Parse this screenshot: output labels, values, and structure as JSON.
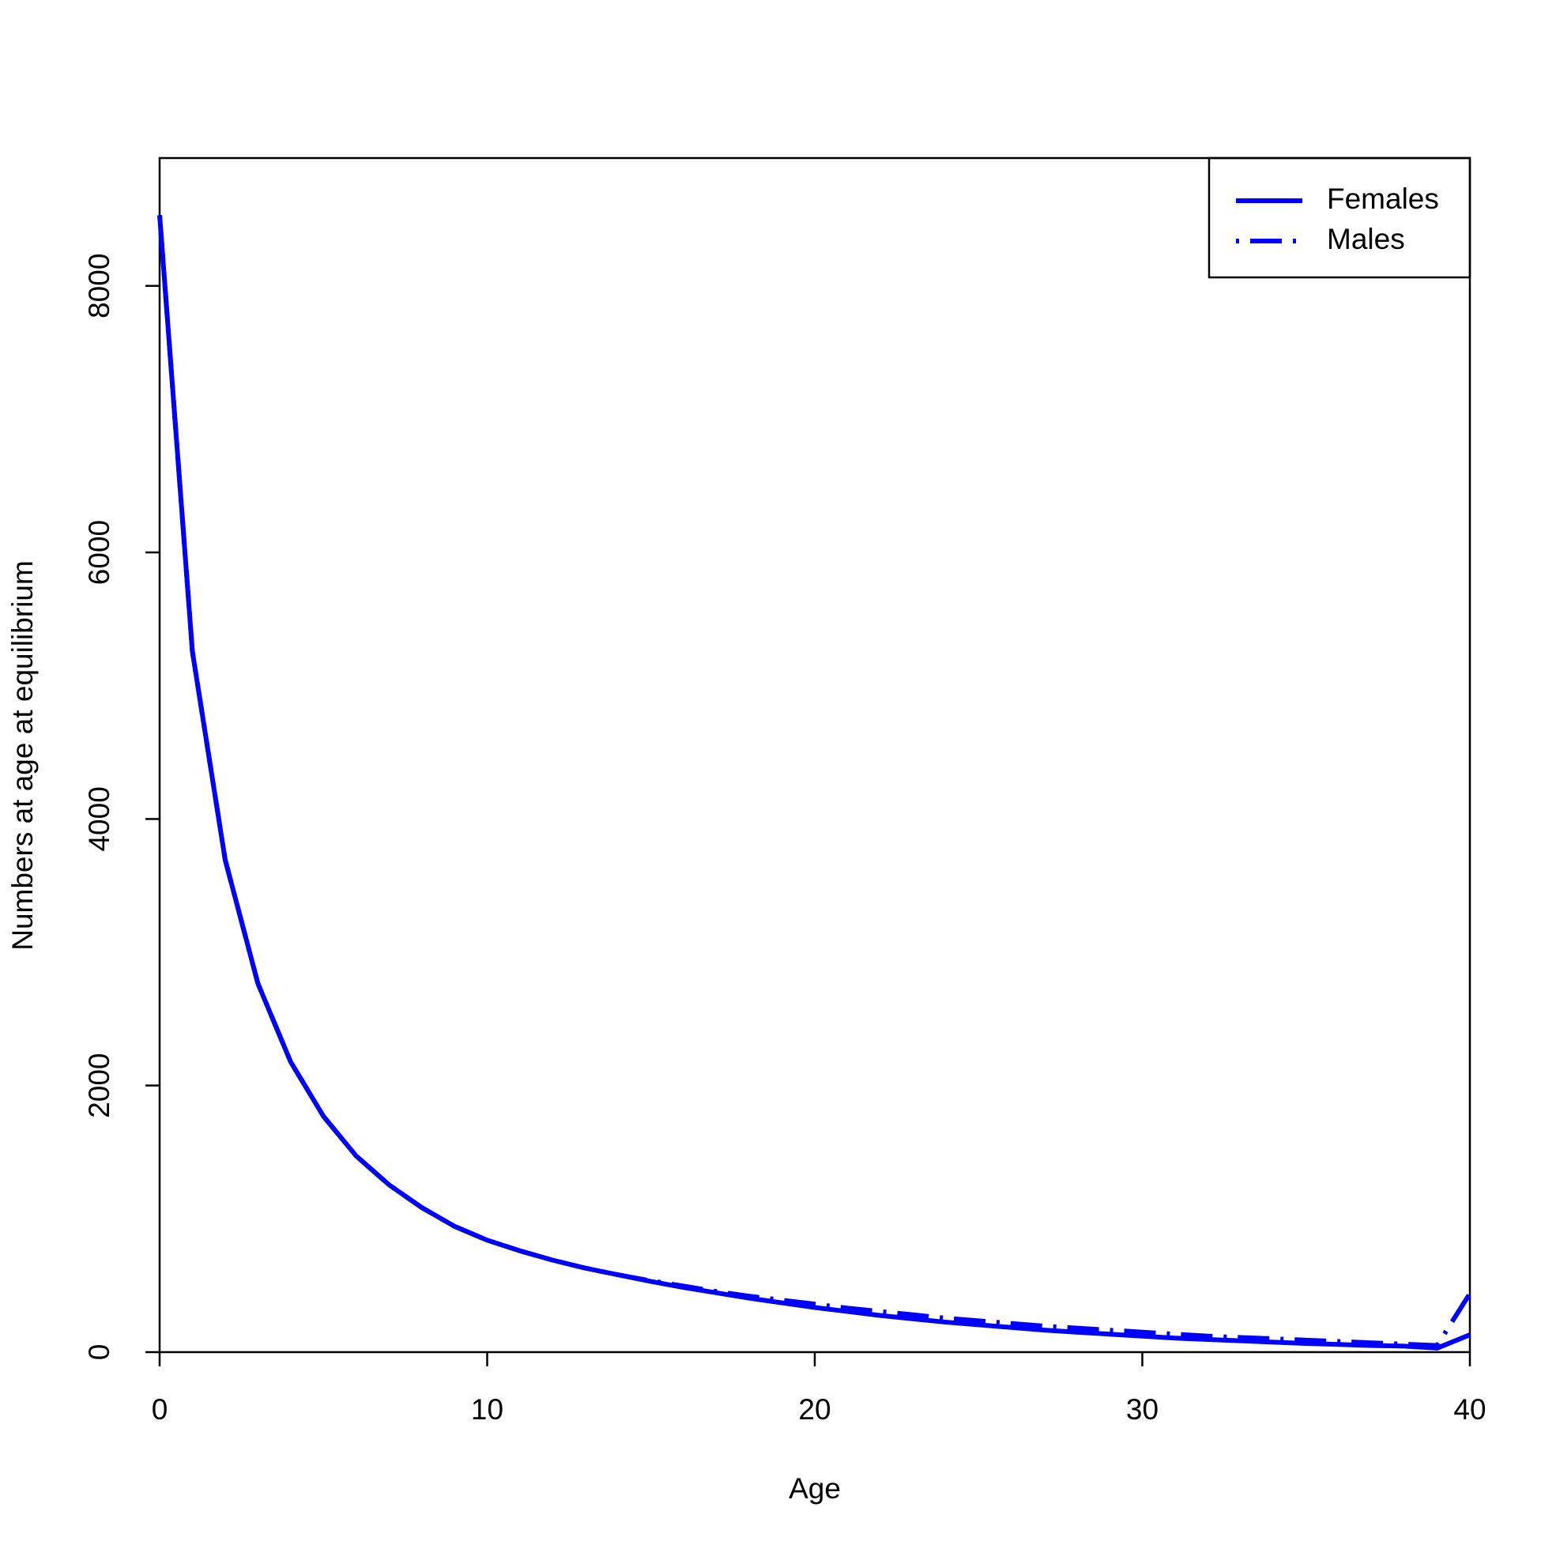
{
  "chart_data": {
    "type": "line",
    "x_label": "Age",
    "y_label": "Numbers at age at equilibrium",
    "x": [
      0,
      1,
      2,
      3,
      4,
      5,
      6,
      7,
      8,
      9,
      10,
      11,
      12,
      13,
      14,
      15,
      16,
      17,
      18,
      19,
      20,
      21,
      22,
      23,
      24,
      25,
      26,
      27,
      28,
      29,
      30,
      31,
      32,
      33,
      34,
      35,
      36,
      37,
      38,
      39,
      40
    ],
    "series": [
      {
        "name": "Females",
        "color": "#0000ff",
        "line_style": "solid",
        "values": [
          8530,
          5257,
          3695,
          2766,
          2178,
          1770,
          1472,
          1256,
          1085,
          944,
          840,
          760,
          690,
          630,
          580,
          530,
          485,
          445,
          405,
          370,
          335,
          305,
          275,
          250,
          225,
          205,
          185,
          165,
          150,
          135,
          120,
          105,
          95,
          85,
          75,
          65,
          58,
          50,
          45,
          30,
          130
        ]
      },
      {
        "name": "Males",
        "color": "#0000ff",
        "line_style": "dotdash",
        "values": [
          8530,
          5257,
          3695,
          2766,
          2178,
          1770,
          1472,
          1256,
          1085,
          944,
          840,
          760,
          690,
          630,
          580,
          535,
          495,
          455,
          420,
          390,
          360,
          330,
          305,
          280,
          255,
          235,
          215,
          195,
          180,
          165,
          150,
          135,
          120,
          110,
          100,
          90,
          80,
          70,
          60,
          50,
          440
        ]
      }
    ],
    "xlim": [
      0,
      40
    ],
    "xticks": [
      0,
      10,
      20,
      30,
      40
    ],
    "ylim": [
      0,
      8959
    ],
    "yticks": [
      0,
      2000,
      4000,
      6000,
      8000
    ],
    "legend": "top-right"
  }
}
